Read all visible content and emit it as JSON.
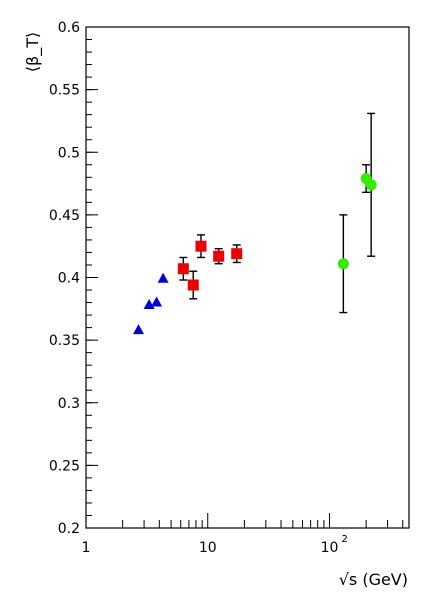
{
  "chart_data": {
    "type": "scatter",
    "title": "",
    "ylabel": "⟨β_T⟩",
    "xlabel": "√s (GeV)",
    "x_scale": "log",
    "xlim": [
      1,
      450
    ],
    "ylim": [
      0.2,
      0.6
    ],
    "grid": false,
    "y_ticks": [
      "0.2",
      "0.25",
      "0.3",
      "0.35",
      "0.4",
      "0.45",
      "0.5",
      "0.55",
      "0.6"
    ],
    "x_ticks": [
      {
        "label": "1",
        "value": 1
      },
      {
        "label": "10",
        "value": 10
      },
      {
        "label": "10",
        "exp": "2",
        "value": 100
      }
    ],
    "series": [
      {
        "marker": "triangle",
        "color": "#0000dd",
        "points": [
          {
            "x": 2.7,
            "y": 0.358
          },
          {
            "x": 3.3,
            "y": 0.378
          },
          {
            "x": 3.8,
            "y": 0.38
          },
          {
            "x": 4.3,
            "y": 0.399
          }
        ]
      },
      {
        "marker": "square",
        "color": "#ee0000",
        "points": [
          {
            "x": 6.3,
            "y": 0.407,
            "err": 0.009
          },
          {
            "x": 7.6,
            "y": 0.394,
            "err": 0.011
          },
          {
            "x": 8.8,
            "y": 0.425,
            "err": 0.009
          },
          {
            "x": 12.3,
            "y": 0.417,
            "err": 0.006
          },
          {
            "x": 17.3,
            "y": 0.419,
            "err": 0.007
          }
        ]
      },
      {
        "marker": "circle",
        "color": "#33ee00",
        "points": [
          {
            "x": 130,
            "y": 0.411,
            "err": 0.039
          },
          {
            "x": 200,
            "y": 0.479,
            "err": 0.011
          },
          {
            "x": 220,
            "y": 0.474,
            "err": 0.057
          }
        ]
      }
    ]
  }
}
